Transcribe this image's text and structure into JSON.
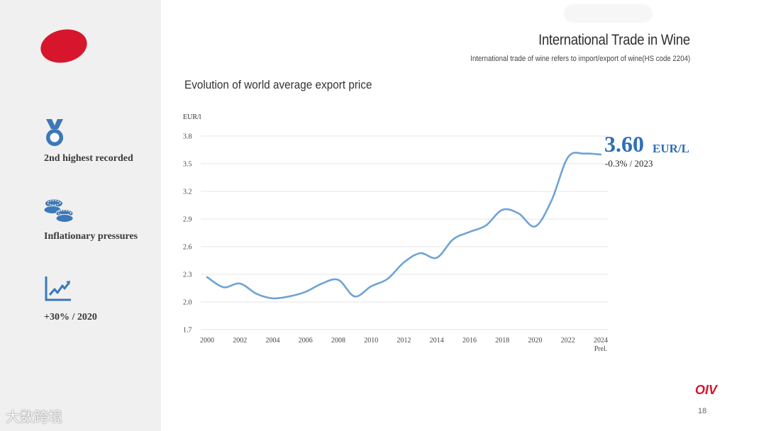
{
  "header": {
    "title": "International Trade in Wine",
    "subtitle": "International trade of wine refers to import/export of wine(HS code 2204)"
  },
  "sidebar": {
    "items": [
      {
        "icon": "medal-icon",
        "label": "2nd  highest recorded"
      },
      {
        "icon": "coins-icon",
        "label": "Inflationary pressures"
      },
      {
        "icon": "trend-chart-icon",
        "label": "+30% / 2020"
      }
    ]
  },
  "footer": {
    "brand": "OIV",
    "page_number": "18",
    "watermark": "大数跨境"
  },
  "colors": {
    "accent_red": "#d7152c",
    "line_blue": "#6fa3d6",
    "highlight_blue": "#2e6fb6"
  },
  "chart_data": {
    "type": "line",
    "title": "Evolution of world average export price",
    "ylabel": "EUR/l",
    "xlabel": "",
    "ylim": [
      1.7,
      3.8
    ],
    "yticks": [
      "3.8",
      "3.5",
      "3.2",
      "2.9",
      "2.6",
      "2.3",
      "2.0",
      "1.7"
    ],
    "xticks": [
      "2000",
      "2002",
      "2004",
      "2006",
      "2008",
      "2010",
      "2012",
      "2014",
      "2016",
      "2018",
      "2020",
      "2022",
      "2024"
    ],
    "xtick_sub": "Prel.",
    "grid": true,
    "series": [
      {
        "name": "World average export price",
        "x": [
          2000,
          2001,
          2002,
          2003,
          2004,
          2005,
          2006,
          2007,
          2008,
          2009,
          2010,
          2011,
          2012,
          2013,
          2014,
          2015,
          2016,
          2017,
          2018,
          2019,
          2020,
          2021,
          2022,
          2023,
          2024
        ],
        "values": [
          2.27,
          2.16,
          2.2,
          2.09,
          2.04,
          2.06,
          2.11,
          2.2,
          2.24,
          2.06,
          2.17,
          2.25,
          2.43,
          2.53,
          2.48,
          2.68,
          2.76,
          2.83,
          3.0,
          2.96,
          2.82,
          3.1,
          3.57,
          3.61,
          3.6
        ]
      }
    ],
    "annotation": {
      "value": "3.60",
      "unit": "EUR/L",
      "change": "-0.3% / 2023"
    }
  }
}
